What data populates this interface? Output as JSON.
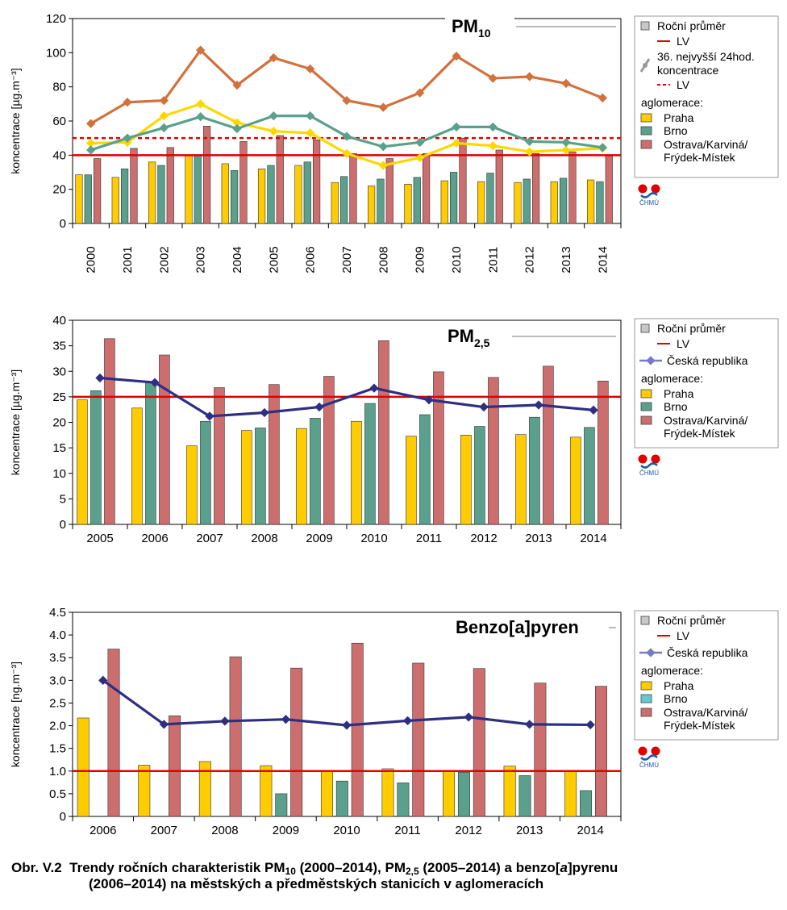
{
  "chart_data": [
    {
      "type": "bar",
      "title_main": "PM",
      "title_sub": "10",
      "ylabel": "koncentrace [µg.m⁻³]",
      "ylim": [
        0,
        120
      ],
      "yticks": [
        0,
        20,
        40,
        60,
        80,
        100,
        120
      ],
      "categories": [
        "2000",
        "2001",
        "2002",
        "2003",
        "2004",
        "2005",
        "2006",
        "2007",
        "2008",
        "2009",
        "2010",
        "2011",
        "2012",
        "2013",
        "2014"
      ],
      "series": [
        {
          "name": "Praha",
          "color": "#ffcc00",
          "values": [
            28.5,
            27,
            36,
            40,
            35,
            32,
            34,
            24,
            22,
            23,
            25,
            24.5,
            24,
            24.5,
            25.5
          ]
        },
        {
          "name": "Brno",
          "color": "#5aa08c",
          "values": [
            28.5,
            32,
            34,
            40,
            31,
            34,
            36,
            27.5,
            26,
            27,
            30,
            29.5,
            26,
            26.5,
            24.5
          ]
        },
        {
          "name": "Ostrava/Karviná/ Frýdek-Místek",
          "color": "#cd6e6e",
          "values": [
            38,
            44,
            44.5,
            57,
            48,
            51.5,
            49,
            41,
            38,
            41,
            50,
            43,
            41,
            42,
            40
          ]
        }
      ],
      "lines": [
        {
          "group": "Praha",
          "color": "#ffd700",
          "values": [
            47,
            47.5,
            63,
            70,
            59,
            54,
            53,
            41,
            34,
            38.5,
            47,
            45.5,
            42,
            43,
            44
          ]
        },
        {
          "group": "Brno",
          "color": "#5aa08c",
          "values": [
            43,
            50,
            56,
            62.5,
            55.5,
            63,
            63,
            51,
            45,
            47.5,
            56.5,
            56.5,
            48,
            47.5,
            44.5
          ]
        },
        {
          "group": "Ostrava/Karviná/ Frýdek-Místek",
          "color": "#d2713c",
          "values": [
            58.5,
            71,
            72,
            101.5,
            81,
            97,
            90.5,
            72,
            68,
            76.5,
            98,
            85,
            86,
            82,
            73.5
          ]
        }
      ],
      "lv_solid": 40,
      "lv_dashed": 50,
      "legend": {
        "annual_mean": "Roční průměr",
        "lv": "LV",
        "line_label_1": "36. nejvyšší 24hod.",
        "line_label_2": "koncentrace",
        "lv2": "LV",
        "agglomerations": "aglomerace:",
        "praha": "Praha",
        "brno": "Brno",
        "ostrava_1": "Ostrava/Karviná/",
        "ostrava_2": "Frýdek-Místek"
      },
      "logo_text": "ČHMÚ"
    },
    {
      "type": "bar",
      "title_main": "PM",
      "title_sub": "2,5",
      "ylabel": "koncentrace [µg.m⁻³]",
      "ylim": [
        0,
        40
      ],
      "yticks": [
        0,
        5,
        10,
        15,
        20,
        25,
        30,
        35,
        40
      ],
      "categories": [
        "2005",
        "2006",
        "2007",
        "2008",
        "2009",
        "2010",
        "2011",
        "2012",
        "2013",
        "2014"
      ],
      "series": [
        {
          "name": "Praha",
          "color": "#ffcc00",
          "values": [
            24.4,
            22.8,
            15.4,
            18.4,
            18.8,
            20.2,
            17.3,
            17.5,
            17.6,
            17.1
          ]
        },
        {
          "name": "Brno",
          "color": "#5aa08c",
          "values": [
            26.2,
            27.8,
            20.2,
            18.9,
            20.8,
            23.7,
            21.5,
            19.2,
            21,
            19
          ]
        },
        {
          "name": "Ostrava/Karviná/ Frýdek-Místek",
          "color": "#cd6e6e",
          "values": [
            36.4,
            33.2,
            26.8,
            27.4,
            29,
            36,
            29.9,
            28.8,
            31,
            28.1
          ]
        }
      ],
      "line": {
        "name": "Česká republika",
        "color": "#2e2e82",
        "values": [
          28.7,
          27.8,
          21.2,
          21.9,
          23,
          26.7,
          24.4,
          23,
          23.4,
          22.4
        ]
      },
      "lv_solid": 25,
      "legend": {
        "annual_mean": "Roční průměr",
        "lv": "LV",
        "cr": "Česká republika",
        "agglomerations": "aglomerace:",
        "praha": "Praha",
        "brno": "Brno",
        "ostrava_1": "Ostrava/Karviná/",
        "ostrava_2": "Frýdek-Místek"
      },
      "logo_text": "ČHMÚ"
    },
    {
      "type": "bar",
      "title_main": "Benzo[a]pyren",
      "ylabel": "koncentrace [ng.m⁻³]",
      "ylim": [
        0,
        4.5
      ],
      "yticks": [
        "0",
        "0.5",
        "1.0",
        "1.5",
        "2.0",
        "2.5",
        "3.0",
        "3.5",
        "4.0",
        "4.5"
      ],
      "categories": [
        "2006",
        "2007",
        "2008",
        "2009",
        "2010",
        "2011",
        "2012",
        "2013",
        "2014"
      ],
      "series": [
        {
          "name": "Praha",
          "color": "#ffcc00",
          "values": [
            2.17,
            1.13,
            1.21,
            1.12,
            1.0,
            1.05,
            1.0,
            1.11,
            1.01
          ]
        },
        {
          "name": "Brno",
          "color": "#5aa08c",
          "values": [
            null,
            null,
            null,
            0.5,
            0.78,
            0.74,
            0.97,
            0.9,
            0.57
          ]
        },
        {
          "name": "Ostrava/Karviná/ Frýdek-Místek",
          "color": "#cd6e6e",
          "values": [
            3.69,
            2.22,
            3.52,
            3.27,
            3.82,
            3.38,
            3.26,
            2.94,
            2.87
          ]
        }
      ],
      "line": {
        "name": "Česká republika",
        "color": "#2e2e82",
        "values": [
          3.0,
          2.03,
          2.1,
          2.14,
          2.01,
          2.11,
          2.19,
          2.03,
          2.02
        ]
      },
      "lv_solid": 1.0,
      "legend": {
        "annual_mean": "Roční průměr",
        "lv": "LV",
        "cr": "Česká republika",
        "agglomerations": "aglomerace:",
        "praha": "Praha",
        "brno": "Brno",
        "brno_color": "#66c8d2",
        "ostrava_1": "Ostrava/Karviná/",
        "ostrava_2": "Frýdek-Místek"
      },
      "logo_text": "ČHMÚ"
    }
  ],
  "caption": {
    "prefix": "Obr. V.2",
    "t1": "Trendy ročních charakteristik PM",
    "s1": "10",
    "t2": " (2000–2014), PM",
    "s2": "2,5",
    "t3": " (2005–2014) a benzo[",
    "t3_italic": "a",
    "t4": "]pyrenu",
    "line2": "(2006–2014) na městských a předměstských stanicích v aglomeracích"
  }
}
